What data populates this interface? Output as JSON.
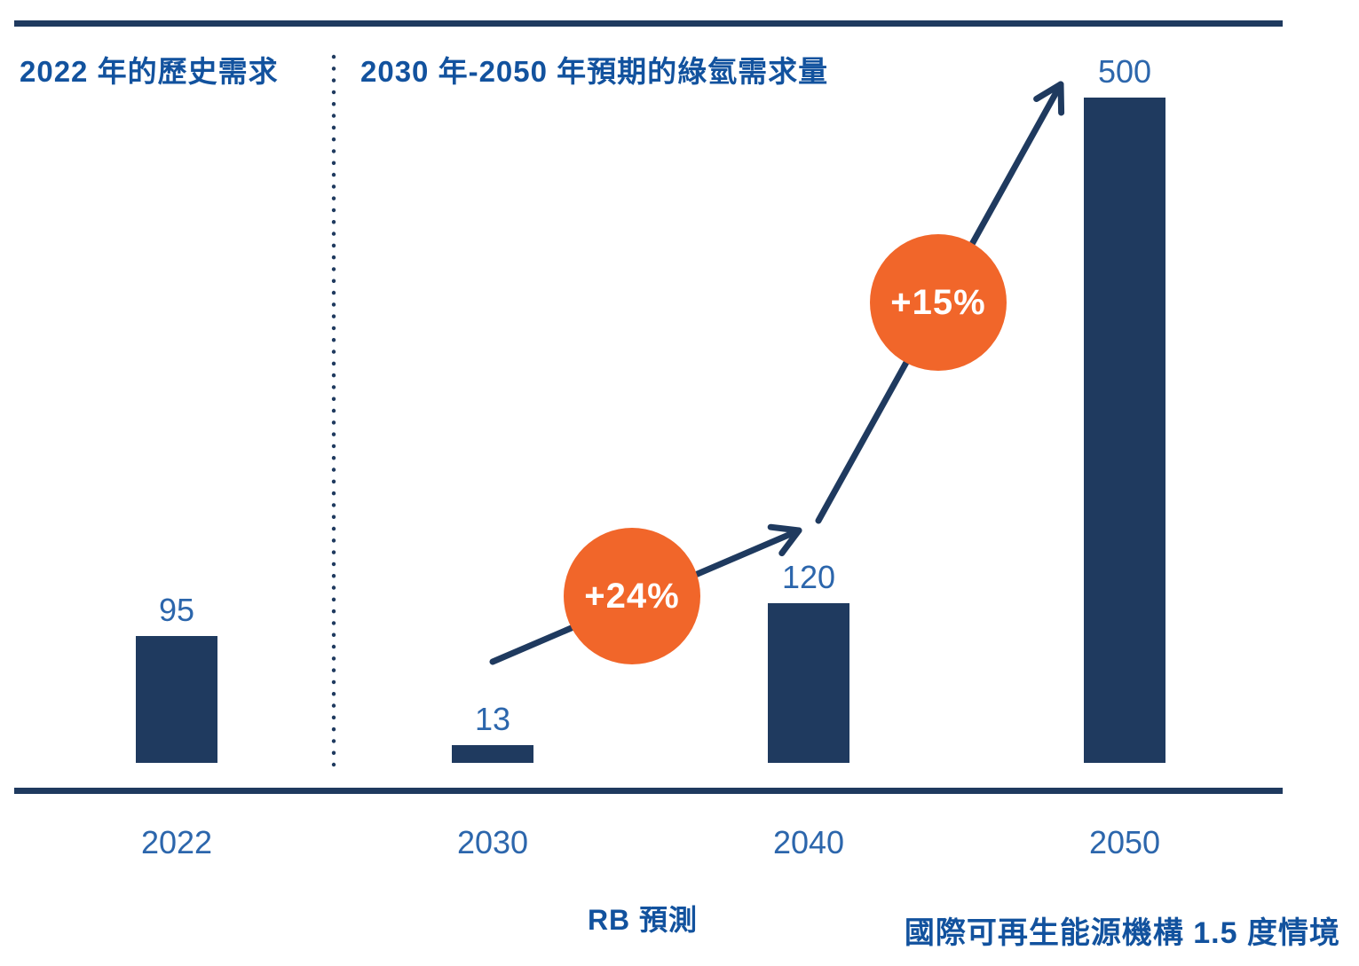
{
  "colors": {
    "navy": "#1F3A5F",
    "header_blue": "#12529E",
    "label_blue": "#2C66AC",
    "orange": "#F1662A",
    "annotation_text": "#FFFFFF"
  },
  "sections": {
    "left_title": "2022 年的歷史需求",
    "right_title": "2030 年-2050 年預期的綠氫需求量"
  },
  "footnotes": {
    "left": "RB 預測",
    "right": "國際可再生能源機構 1.5 度情境"
  },
  "chart_data": {
    "type": "bar",
    "title": "",
    "categories": [
      "2022",
      "2030",
      "2040",
      "2050"
    ],
    "values": [
      95,
      13,
      120,
      500
    ],
    "bar_color": "#1F3A5F",
    "sections": [
      {
        "title": "2022 年的歷史需求",
        "categories": [
          "2022"
        ]
      },
      {
        "title": "2030 年-2050 年預期的綠氫需求量",
        "categories": [
          "2030",
          "2040",
          "2050"
        ]
      }
    ],
    "annotations": [
      {
        "label": "+24%",
        "between": [
          "2030",
          "2040"
        ],
        "color": "#F1662A"
      },
      {
        "label": "+15%",
        "between": [
          "2040",
          "2050"
        ],
        "color": "#F1662A"
      }
    ],
    "footnotes": [
      "RB 預測",
      "國際可再生能源機構 1.5 度情境"
    ],
    "xlabel": "",
    "ylabel": "",
    "ylim": [
      0,
      500
    ],
    "grid": false,
    "legend": false
  }
}
